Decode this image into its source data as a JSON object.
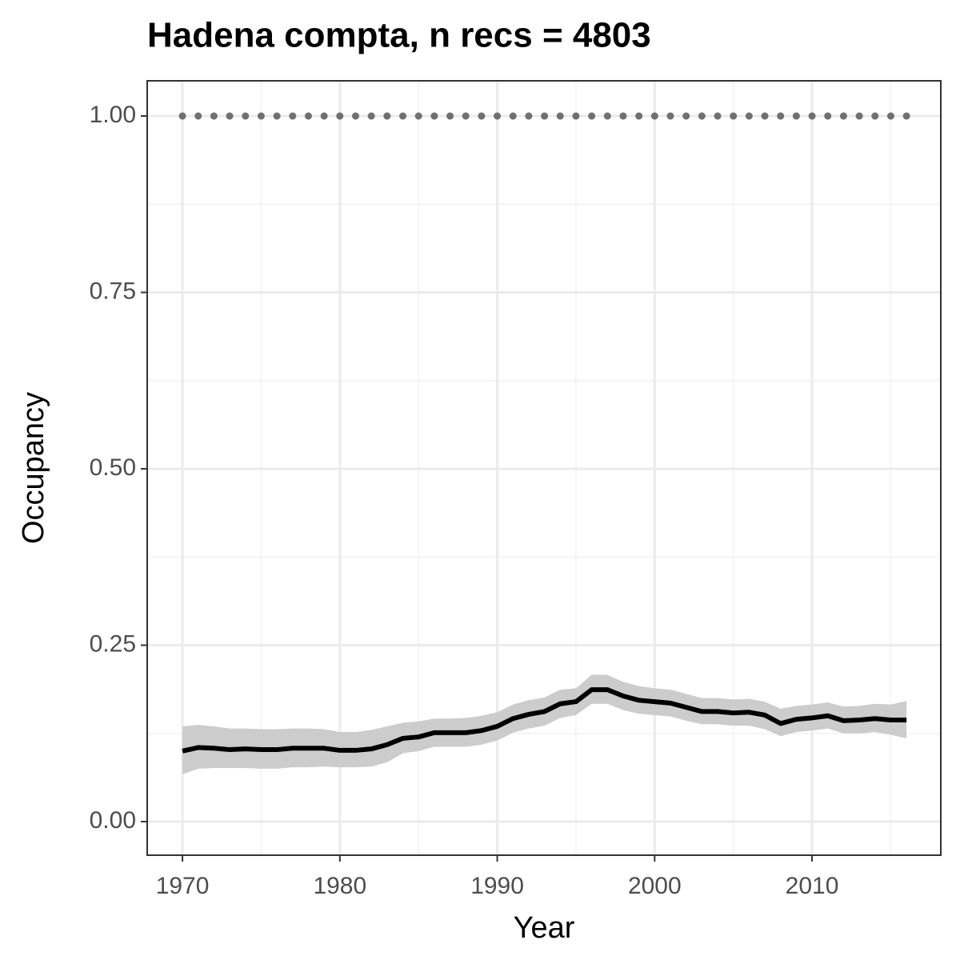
{
  "chart_data": {
    "type": "line",
    "title": "Hadena compta, n recs = 4803",
    "x_label": "Year",
    "y_label": "Occupancy",
    "x": [
      1970,
      1971,
      1972,
      1973,
      1974,
      1975,
      1976,
      1977,
      1978,
      1979,
      1980,
      1981,
      1982,
      1983,
      1984,
      1985,
      1986,
      1987,
      1988,
      1989,
      1990,
      1991,
      1992,
      1993,
      1994,
      1995,
      1996,
      1997,
      1998,
      1999,
      2000,
      2001,
      2002,
      2003,
      2004,
      2005,
      2006,
      2007,
      2008,
      2009,
      2010,
      2011,
      2012,
      2013,
      2014,
      2015,
      2016
    ],
    "values": [
      0.1,
      0.105,
      0.104,
      0.102,
      0.103,
      0.102,
      0.102,
      0.104,
      0.104,
      0.104,
      0.101,
      0.101,
      0.103,
      0.109,
      0.118,
      0.12,
      0.126,
      0.126,
      0.126,
      0.129,
      0.135,
      0.146,
      0.152,
      0.156,
      0.167,
      0.17,
      0.187,
      0.187,
      0.178,
      0.172,
      0.17,
      0.168,
      0.162,
      0.156,
      0.156,
      0.154,
      0.155,
      0.151,
      0.139,
      0.145,
      0.147,
      0.15,
      0.143,
      0.144,
      0.146,
      0.144,
      0.144
    ],
    "lower": [
      0.067,
      0.075,
      0.076,
      0.076,
      0.076,
      0.075,
      0.075,
      0.077,
      0.077,
      0.078,
      0.077,
      0.077,
      0.078,
      0.084,
      0.097,
      0.1,
      0.106,
      0.106,
      0.106,
      0.109,
      0.115,
      0.126,
      0.132,
      0.136,
      0.147,
      0.151,
      0.167,
      0.167,
      0.158,
      0.153,
      0.151,
      0.149,
      0.143,
      0.138,
      0.138,
      0.136,
      0.136,
      0.131,
      0.121,
      0.127,
      0.129,
      0.132,
      0.125,
      0.125,
      0.127,
      0.123,
      0.118
    ],
    "upper": [
      0.135,
      0.137,
      0.135,
      0.132,
      0.132,
      0.131,
      0.131,
      0.132,
      0.132,
      0.131,
      0.127,
      0.127,
      0.13,
      0.135,
      0.14,
      0.142,
      0.146,
      0.146,
      0.147,
      0.15,
      0.155,
      0.166,
      0.172,
      0.176,
      0.187,
      0.189,
      0.208,
      0.208,
      0.198,
      0.192,
      0.189,
      0.187,
      0.181,
      0.175,
      0.175,
      0.173,
      0.174,
      0.17,
      0.16,
      0.164,
      0.166,
      0.169,
      0.163,
      0.164,
      0.167,
      0.166,
      0.171
    ],
    "reference_values": [
      1,
      1,
      1,
      1,
      1,
      1,
      1,
      1,
      1,
      1,
      1,
      1,
      1,
      1,
      1,
      1,
      1,
      1,
      1,
      1,
      1,
      1,
      1,
      1,
      1,
      1,
      1,
      1,
      1,
      1,
      1,
      1,
      1,
      1,
      1,
      1,
      1,
      1,
      1,
      1,
      1,
      1,
      1,
      1,
      1,
      1,
      1
    ],
    "line_color": "#000000",
    "ribbon_color": "#cccccc",
    "reference_color": "#707070",
    "xlim": [
      1967.76,
      2018.18
    ],
    "ylim": [
      -0.0476,
      1.0499
    ],
    "xticks": [
      1970,
      1980,
      1990,
      2000,
      2010
    ],
    "xminor": [
      1975,
      1985,
      1995,
      2005,
      2015
    ],
    "yticks": [
      {
        "value": 0,
        "label": "0.00"
      },
      {
        "value": 0.25,
        "label": "0.25"
      },
      {
        "value": 0.5,
        "label": "0.50"
      },
      {
        "value": 0.75,
        "label": "0.75"
      },
      {
        "value": 1,
        "label": "1.00"
      }
    ],
    "yminor": [
      0.125,
      0.375,
      0.625,
      0.875
    ],
    "grid": true
  }
}
